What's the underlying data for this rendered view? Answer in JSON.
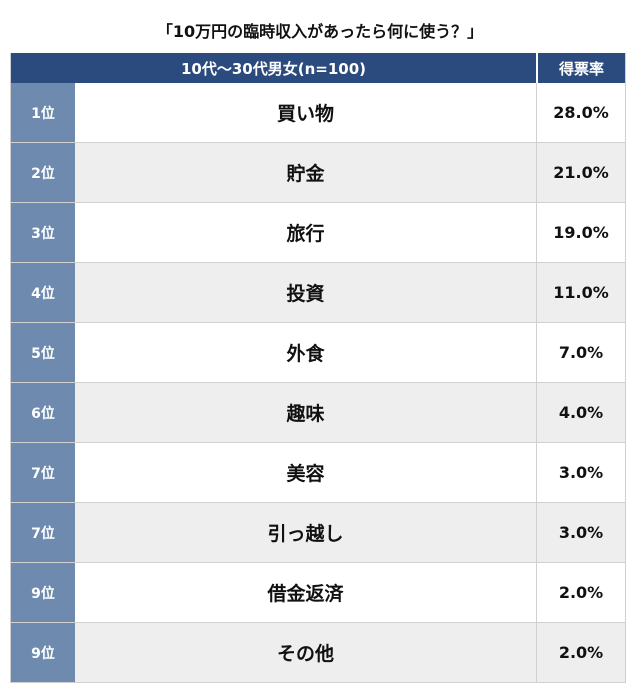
{
  "title": "「10万円の臨時収入があったら何に使う？」",
  "header": {
    "group": "10代〜30代男女(n=100)",
    "rate_label": "得票率"
  },
  "rows": [
    {
      "rank": "1位",
      "item": "買い物",
      "rate": "28.0%"
    },
    {
      "rank": "2位",
      "item": "貯金",
      "rate": "21.0%"
    },
    {
      "rank": "3位",
      "item": "旅行",
      "rate": "19.0%"
    },
    {
      "rank": "4位",
      "item": "投資",
      "rate": "11.0%"
    },
    {
      "rank": "5位",
      "item": "外食",
      "rate": "7.0%"
    },
    {
      "rank": "6位",
      "item": "趣味",
      "rate": "4.0%"
    },
    {
      "rank": "7位",
      "item": "美容",
      "rate": "3.0%"
    },
    {
      "rank": "7位",
      "item": "引っ越し",
      "rate": "3.0%"
    },
    {
      "rank": "9位",
      "item": "借金返済",
      "rate": "2.0%"
    },
    {
      "rank": "9位",
      "item": "その他",
      "rate": "2.0%"
    }
  ],
  "chart_data": {
    "type": "table",
    "title": "「10万円の臨時収入があったら何に使う？」",
    "columns": [
      "10代〜30代男女(n=100)",
      "得票率"
    ],
    "categories": [
      "買い物",
      "貯金",
      "旅行",
      "投資",
      "外食",
      "趣味",
      "美容",
      "引っ越し",
      "借金返済",
      "その他"
    ],
    "ranks": [
      "1位",
      "2位",
      "3位",
      "4位",
      "5位",
      "6位",
      "7位",
      "7位",
      "9位",
      "9位"
    ],
    "values": [
      28.0,
      21.0,
      19.0,
      11.0,
      7.0,
      4.0,
      3.0,
      3.0,
      2.0,
      2.0
    ]
  },
  "colors": {
    "header_bg": "#2b4a7e",
    "rank_bg": "#6e8aaf",
    "row_alt_bg": "#eeeeee"
  }
}
